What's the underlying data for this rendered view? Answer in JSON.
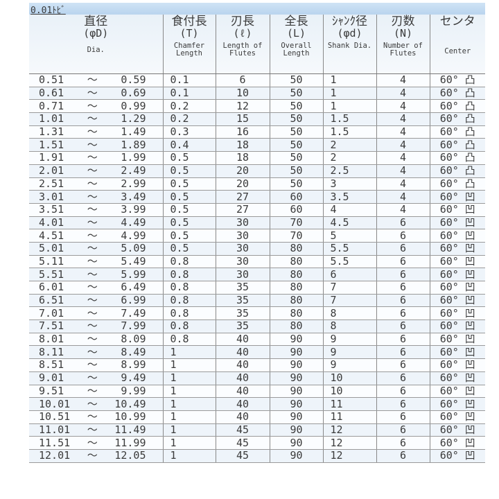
{
  "title": "0.01ﾄﾋﾞ",
  "headers": {
    "dia": {
      "jp": "直径",
      "sym": "(φD)",
      "en": "Dia."
    },
    "chamfer": {
      "jp": "食付長",
      "sym": "(T)",
      "en": "Chamfer Length"
    },
    "flutes": {
      "jp": "刃長",
      "sym": "(ℓ)",
      "en": "Length of Flutes"
    },
    "overall": {
      "jp": "全長",
      "sym": "(L)",
      "en": "Overall Length"
    },
    "shank": {
      "jp": "ｼｬﾝｸ径",
      "sym": "(φd)",
      "en": "Shank Dia."
    },
    "number": {
      "jp": "刃数",
      "sym": "(N)",
      "en": "Number of Flutes"
    },
    "center": {
      "jp": "センタ",
      "sym": "",
      "en": "Center"
    }
  },
  "tilde": "～",
  "rows": [
    [
      "0.51",
      "0.59",
      "0.1",
      "6",
      "50",
      "1",
      "4",
      "60° 凸"
    ],
    [
      "0.61",
      "0.69",
      "0.1",
      "10",
      "50",
      "1",
      "4",
      "60° 凸"
    ],
    [
      "0.71",
      "0.99",
      "0.2",
      "12",
      "50",
      "1",
      "4",
      "60° 凸"
    ],
    [
      "1.01",
      "1.29",
      "0.2",
      "15",
      "50",
      "1.5",
      "4",
      "60° 凸"
    ],
    [
      "1.31",
      "1.49",
      "0.3",
      "16",
      "50",
      "1.5",
      "4",
      "60° 凸"
    ],
    [
      "1.51",
      "1.89",
      "0.4",
      "18",
      "50",
      "2",
      "4",
      "60° 凸"
    ],
    [
      "1.91",
      "1.99",
      "0.5",
      "18",
      "50",
      "2",
      "4",
      "60° 凸"
    ],
    [
      "2.01",
      "2.49",
      "0.5",
      "20",
      "50",
      "2.5",
      "4",
      "60° 凸"
    ],
    [
      "2.51",
      "2.99",
      "0.5",
      "20",
      "50",
      "3",
      "4",
      "60° 凸"
    ],
    [
      "3.01",
      "3.49",
      "0.5",
      "27",
      "60",
      "3.5",
      "4",
      "60° 凹"
    ],
    [
      "3.51",
      "3.99",
      "0.5",
      "27",
      "60",
      "4",
      "4",
      "60° 凹"
    ],
    [
      "4.01",
      "4.49",
      "0.5",
      "30",
      "70",
      "4.5",
      "6",
      "60° 凹"
    ],
    [
      "4.51",
      "4.99",
      "0.5",
      "30",
      "70",
      "5",
      "6",
      "60° 凹"
    ],
    [
      "5.01",
      "5.09",
      "0.5",
      "30",
      "80",
      "5.5",
      "6",
      "60° 凹"
    ],
    [
      "5.11",
      "5.49",
      "0.8",
      "30",
      "80",
      "5.5",
      "6",
      "60° 凹"
    ],
    [
      "5.51",
      "5.99",
      "0.8",
      "30",
      "80",
      "6",
      "6",
      "60° 凹"
    ],
    [
      "6.01",
      "6.49",
      "0.8",
      "35",
      "80",
      "7",
      "6",
      "60° 凹"
    ],
    [
      "6.51",
      "6.99",
      "0.8",
      "35",
      "80",
      "7",
      "6",
      "60° 凹"
    ],
    [
      "7.01",
      "7.49",
      "0.8",
      "35",
      "80",
      "8",
      "6",
      "60° 凹"
    ],
    [
      "7.51",
      "7.99",
      "0.8",
      "35",
      "80",
      "8",
      "6",
      "60° 凹"
    ],
    [
      "8.01",
      "8.09",
      "0.8",
      "40",
      "90",
      "9",
      "6",
      "60° 凹"
    ],
    [
      "8.11",
      "8.49",
      "1",
      "40",
      "90",
      "9",
      "6",
      "60° 凹"
    ],
    [
      "8.51",
      "8.99",
      "1",
      "40",
      "90",
      "9",
      "6",
      "60° 凹"
    ],
    [
      "9.01",
      "9.49",
      "1",
      "40",
      "90",
      "10",
      "6",
      "60° 凹"
    ],
    [
      "9.51",
      "9.99",
      "1",
      "40",
      "90",
      "10",
      "6",
      "60° 凹"
    ],
    [
      "10.01",
      "10.49",
      "1",
      "40",
      "90",
      "11",
      "6",
      "60° 凹"
    ],
    [
      "10.51",
      "10.99",
      "1",
      "40",
      "90",
      "11",
      "6",
      "60° 凹"
    ],
    [
      "11.01",
      "11.49",
      "1",
      "45",
      "90",
      "12",
      "6",
      "60° 凹"
    ],
    [
      "11.51",
      "11.99",
      "1",
      "45",
      "90",
      "12",
      "6",
      "60° 凹"
    ],
    [
      "12.01",
      "12.05",
      "1",
      "45",
      "90",
      "12",
      "6",
      "60° 凹"
    ]
  ]
}
